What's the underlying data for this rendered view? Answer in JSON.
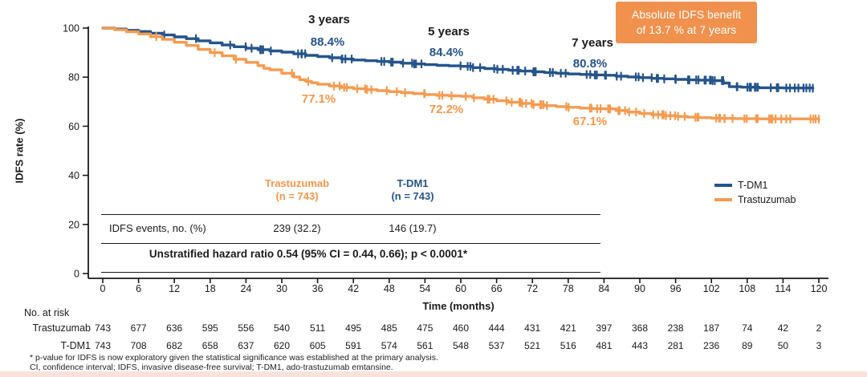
{
  "colors": {
    "tdm1_blue": "#25548B",
    "trastuzumab_orange": "#F59B51",
    "benefit_box_bg": "#F0914D",
    "benefit_box_text": "#FFFFFF",
    "axis": "#1a1a1a",
    "footer_strip_pink": "#F9E2DC"
  },
  "benefit_box": {
    "line1": "Absolute IDFS benefit",
    "line2": "of 13.7 % at 7 years"
  },
  "annotations": {
    "year3": {
      "label": "3 years",
      "tdm1": "88.4%",
      "trastuzumab": "77.1%"
    },
    "year5": {
      "label": "5 years",
      "tdm1": "84.4%",
      "trastuzumab": "72.2%"
    },
    "year7": {
      "label": "7 years",
      "tdm1": "80.8%",
      "trastuzumab": "67.1%"
    }
  },
  "legend": {
    "tdm1": "T-DM1",
    "trastuzumab": "Trastuzumab"
  },
  "events_table": {
    "col1_header_line1": "Trastuzumab",
    "col1_header_line2": "(n = 743)",
    "col2_header_line1": "T-DM1",
    "col2_header_line2": "(n = 743)",
    "row_label": "IDFS events, no. (%)",
    "trastuzumab_value": "239 (32.2)",
    "tdm1_value": "146 (19.7)",
    "hazard_text": "Unstratified hazard ratio 0.54 (95% CI = 0.44, 0.66); p < 0.0001*"
  },
  "axes": {
    "ylabel": "IDFS rate (%)",
    "xlabel": "Time (months)",
    "yticks": [
      100,
      80,
      60,
      40,
      20,
      0
    ],
    "xticks": [
      0,
      6,
      12,
      18,
      24,
      30,
      36,
      42,
      48,
      54,
      60,
      66,
      72,
      78,
      84,
      90,
      96,
      102,
      108,
      114,
      120
    ]
  },
  "at_risk": {
    "title": "No. at risk",
    "rows": [
      {
        "label": "Trastuzumab",
        "values": [
          743,
          677,
          636,
          595,
          556,
          540,
          511,
          495,
          485,
          475,
          460,
          444,
          431,
          421,
          397,
          368,
          238,
          187,
          74,
          42,
          2
        ]
      },
      {
        "label": "T-DM1",
        "values": [
          743,
          708,
          682,
          658,
          637,
          620,
          605,
          591,
          574,
          561,
          548,
          537,
          521,
          516,
          481,
          443,
          281,
          236,
          89,
          50,
          3
        ]
      }
    ]
  },
  "footnotes": [
    "* p-value for IDFS is now exploratory given the statistical significance was established at the primary analysis.",
    "CI, confidence interval; IDFS, invasive disease-free survival; T-DM1, ado-trastuzumab emtansine."
  ],
  "chart_data": {
    "type": "line",
    "subtype": "kaplan-meier-step",
    "title": "",
    "xlabel": "Time (months)",
    "ylabel": "IDFS rate (%)",
    "xlim": [
      0,
      122
    ],
    "ylim": [
      0,
      100
    ],
    "x_tick_step": 6,
    "grid": false,
    "legend_position": "right-middle",
    "milestones": {
      "months": [
        36,
        60,
        84
      ],
      "labels": [
        "3 years",
        "5 years",
        "7 years"
      ],
      "tdm1_pct": [
        88.4,
        84.4,
        80.8
      ],
      "trastuzumab_pct": [
        77.1,
        72.2,
        67.1
      ],
      "absolute_benefit_pct_at_7yr": 13.7
    },
    "statistics": {
      "hazard_ratio": 0.54,
      "ci95": [
        0.44,
        0.66
      ],
      "p": "< 0.0001",
      "idfs_events": {
        "Trastuzumab": "239 (32.2)",
        "T-DM1": "146 (19.7)"
      },
      "n_per_arm": 743
    },
    "series": [
      {
        "name": "T-DM1",
        "color": "#25548B",
        "points": [
          [
            0,
            100
          ],
          [
            2,
            99.6
          ],
          [
            4,
            99.1
          ],
          [
            6,
            98.6
          ],
          [
            8,
            97.9
          ],
          [
            10,
            97.2
          ],
          [
            12,
            96.4
          ],
          [
            14,
            95.7
          ],
          [
            16,
            94.8
          ],
          [
            18,
            94.0
          ],
          [
            20,
            93.1
          ],
          [
            22,
            92.4
          ],
          [
            24,
            91.8
          ],
          [
            26,
            91.2
          ],
          [
            28,
            90.7
          ],
          [
            30,
            90.2
          ],
          [
            32,
            89.5
          ],
          [
            34,
            88.9
          ],
          [
            36,
            88.4
          ],
          [
            38,
            87.9
          ],
          [
            40,
            87.4
          ],
          [
            42,
            87.0
          ],
          [
            44,
            86.7
          ],
          [
            46,
            86.4
          ],
          [
            48,
            86.1
          ],
          [
            50,
            85.7
          ],
          [
            52,
            85.4
          ],
          [
            54,
            85.1
          ],
          [
            56,
            84.8
          ],
          [
            58,
            84.6
          ],
          [
            60,
            84.4
          ],
          [
            62,
            83.9
          ],
          [
            64,
            83.5
          ],
          [
            66,
            83.2
          ],
          [
            68,
            82.8
          ],
          [
            70,
            82.5
          ],
          [
            72,
            82.2
          ],
          [
            74,
            81.9
          ],
          [
            76,
            81.6
          ],
          [
            78,
            81.3
          ],
          [
            80,
            81.1
          ],
          [
            82,
            80.9
          ],
          [
            84,
            80.8
          ],
          [
            86,
            80.4
          ],
          [
            88,
            80.1
          ],
          [
            90,
            79.8
          ],
          [
            92,
            79.5
          ],
          [
            94,
            79.3
          ],
          [
            96,
            79.1
          ],
          [
            98,
            78.9
          ],
          [
            100,
            78.8
          ],
          [
            102,
            78.6
          ],
          [
            104,
            77.6
          ],
          [
            105,
            76.1
          ],
          [
            107,
            75.9
          ],
          [
            110,
            75.7
          ],
          [
            114,
            75.6
          ],
          [
            119,
            75.5
          ]
        ]
      },
      {
        "name": "Trastuzumab",
        "color": "#F59B51",
        "points": [
          [
            0,
            100
          ],
          [
            2,
            99.3
          ],
          [
            4,
            98.5
          ],
          [
            6,
            97.6
          ],
          [
            8,
            96.5
          ],
          [
            10,
            95.4
          ],
          [
            12,
            94.2
          ],
          [
            14,
            92.9
          ],
          [
            16,
            91.3
          ],
          [
            18,
            90.0
          ],
          [
            20,
            88.7
          ],
          [
            22,
            87.3
          ],
          [
            24,
            86.0
          ],
          [
            26,
            84.7
          ],
          [
            27,
            83.6
          ],
          [
            28,
            83.0
          ],
          [
            30,
            81.6
          ],
          [
            32,
            80.1
          ],
          [
            33,
            79.0
          ],
          [
            34,
            78.3
          ],
          [
            35,
            77.7
          ],
          [
            36,
            77.1
          ],
          [
            38,
            76.4
          ],
          [
            40,
            75.8
          ],
          [
            42,
            75.3
          ],
          [
            44,
            74.9
          ],
          [
            46,
            74.5
          ],
          [
            48,
            74.1
          ],
          [
            50,
            73.7
          ],
          [
            52,
            73.3
          ],
          [
            54,
            72.9
          ],
          [
            56,
            72.6
          ],
          [
            58,
            72.4
          ],
          [
            60,
            72.2
          ],
          [
            62,
            71.6
          ],
          [
            64,
            71.0
          ],
          [
            66,
            70.4
          ],
          [
            68,
            69.8
          ],
          [
            70,
            69.3
          ],
          [
            72,
            68.8
          ],
          [
            74,
            68.4
          ],
          [
            76,
            68.0
          ],
          [
            78,
            67.7
          ],
          [
            80,
            67.4
          ],
          [
            82,
            67.2
          ],
          [
            84,
            67.1
          ],
          [
            86,
            66.4
          ],
          [
            88,
            65.8
          ],
          [
            90,
            65.2
          ],
          [
            92,
            64.7
          ],
          [
            94,
            64.3
          ],
          [
            96,
            64.0
          ],
          [
            98,
            63.7
          ],
          [
            100,
            63.5
          ],
          [
            102,
            63.3
          ],
          [
            104,
            63.2
          ],
          [
            106,
            63.1
          ],
          [
            110,
            63.0
          ],
          [
            114,
            63.0
          ],
          [
            120,
            62.9
          ]
        ]
      }
    ]
  }
}
